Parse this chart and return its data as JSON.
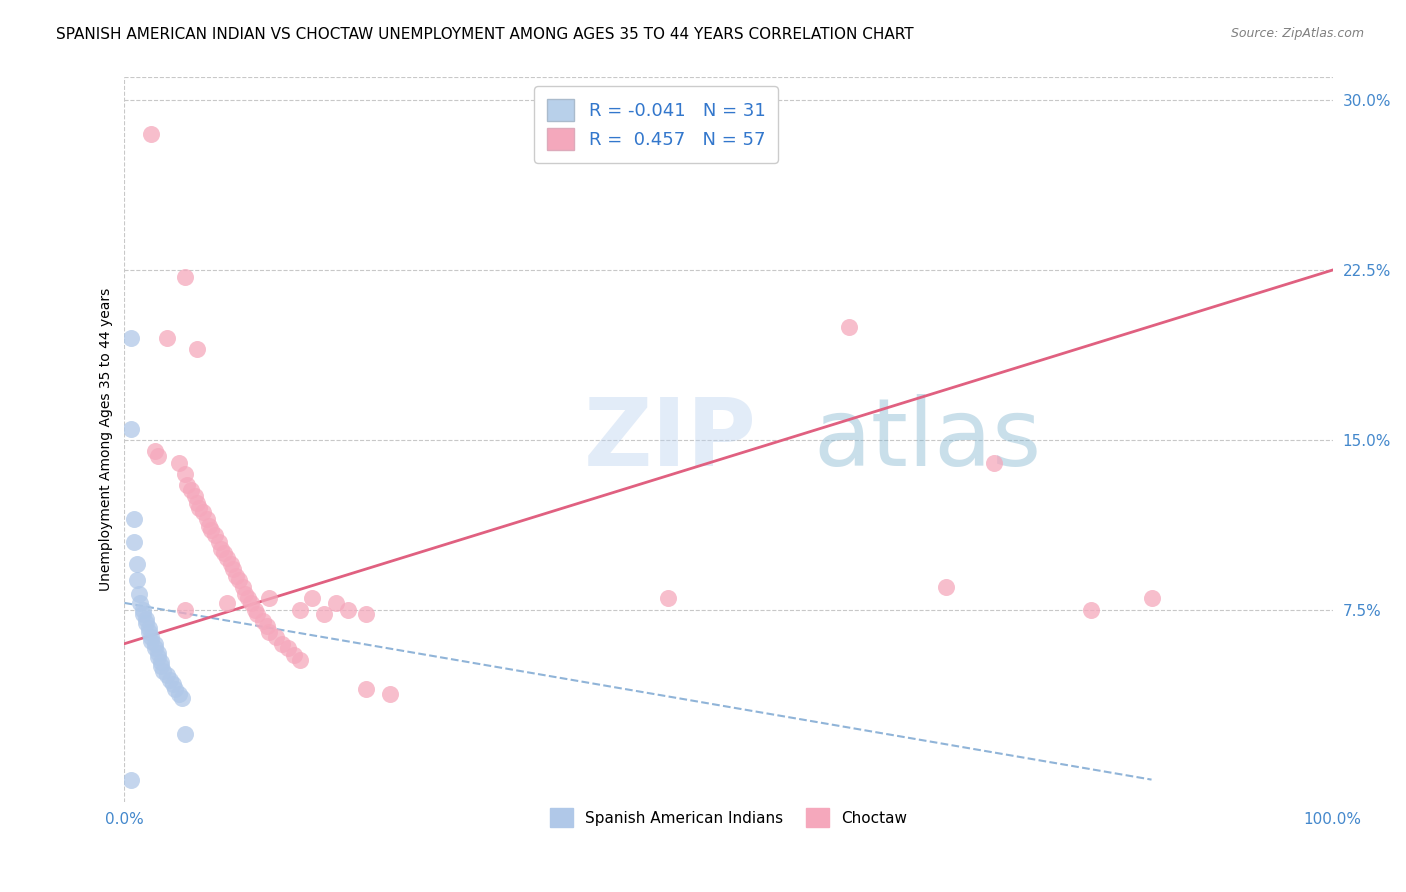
{
  "title": "SPANISH AMERICAN INDIAN VS CHOCTAW UNEMPLOYMENT AMONG AGES 35 TO 44 YEARS CORRELATION CHART",
  "source": "Source: ZipAtlas.com",
  "ylabel": "Unemployment Among Ages 35 to 44 years",
  "xlim": [
    0,
    1.0
  ],
  "ylim": [
    -0.01,
    0.31
  ],
  "xticks": [
    0.0,
    1.0
  ],
  "xticklabels": [
    "0.0%",
    "100.0%"
  ],
  "yticks": [
    0.075,
    0.15,
    0.225,
    0.3
  ],
  "yticklabels": [
    "7.5%",
    "15.0%",
    "22.5%",
    "30.0%"
  ],
  "legend_entries": [
    {
      "label": "R = -0.041   N = 31",
      "color": "#b8d0ea"
    },
    {
      "label": "R =  0.457   N = 57",
      "color": "#f4a8bc"
    }
  ],
  "legend_labels_bottom": [
    "Spanish American Indians",
    "Choctaw"
  ],
  "watermark_text": "ZIP",
  "watermark_text2": "atlas",
  "blue_points": [
    [
      0.005,
      0.195
    ],
    [
      0.005,
      0.155
    ],
    [
      0.008,
      0.115
    ],
    [
      0.008,
      0.105
    ],
    [
      0.01,
      0.095
    ],
    [
      0.01,
      0.088
    ],
    [
      0.012,
      0.082
    ],
    [
      0.013,
      0.078
    ],
    [
      0.015,
      0.075
    ],
    [
      0.015,
      0.073
    ],
    [
      0.018,
      0.071
    ],
    [
      0.018,
      0.069
    ],
    [
      0.02,
      0.067
    ],
    [
      0.02,
      0.065
    ],
    [
      0.022,
      0.063
    ],
    [
      0.022,
      0.061
    ],
    [
      0.025,
      0.06
    ],
    [
      0.025,
      0.058
    ],
    [
      0.028,
      0.056
    ],
    [
      0.028,
      0.054
    ],
    [
      0.03,
      0.052
    ],
    [
      0.03,
      0.05
    ],
    [
      0.032,
      0.048
    ],
    [
      0.035,
      0.046
    ],
    [
      0.038,
      0.044
    ],
    [
      0.04,
      0.042
    ],
    [
      0.042,
      0.04
    ],
    [
      0.045,
      0.038
    ],
    [
      0.048,
      0.036
    ],
    [
      0.05,
      0.02
    ],
    [
      0.005,
      0.0
    ]
  ],
  "pink_points": [
    [
      0.022,
      0.285
    ],
    [
      0.05,
      0.222
    ],
    [
      0.035,
      0.195
    ],
    [
      0.06,
      0.19
    ],
    [
      0.025,
      0.145
    ],
    [
      0.028,
      0.143
    ],
    [
      0.045,
      0.14
    ],
    [
      0.05,
      0.135
    ],
    [
      0.052,
      0.13
    ],
    [
      0.055,
      0.128
    ],
    [
      0.058,
      0.125
    ],
    [
      0.06,
      0.122
    ],
    [
      0.062,
      0.12
    ],
    [
      0.065,
      0.118
    ],
    [
      0.068,
      0.115
    ],
    [
      0.07,
      0.112
    ],
    [
      0.072,
      0.11
    ],
    [
      0.075,
      0.108
    ],
    [
      0.078,
      0.105
    ],
    [
      0.08,
      0.102
    ],
    [
      0.082,
      0.1
    ],
    [
      0.085,
      0.098
    ],
    [
      0.088,
      0.095
    ],
    [
      0.09,
      0.093
    ],
    [
      0.092,
      0.09
    ],
    [
      0.095,
      0.088
    ],
    [
      0.098,
      0.085
    ],
    [
      0.1,
      0.082
    ],
    [
      0.102,
      0.08
    ],
    [
      0.105,
      0.078
    ],
    [
      0.108,
      0.075
    ],
    [
      0.11,
      0.073
    ],
    [
      0.115,
      0.07
    ],
    [
      0.118,
      0.068
    ],
    [
      0.12,
      0.065
    ],
    [
      0.125,
      0.063
    ],
    [
      0.13,
      0.06
    ],
    [
      0.135,
      0.058
    ],
    [
      0.14,
      0.055
    ],
    [
      0.145,
      0.053
    ],
    [
      0.05,
      0.075
    ],
    [
      0.085,
      0.078
    ],
    [
      0.12,
      0.08
    ],
    [
      0.145,
      0.075
    ],
    [
      0.165,
      0.073
    ],
    [
      0.155,
      0.08
    ],
    [
      0.175,
      0.078
    ],
    [
      0.185,
      0.075
    ],
    [
      0.2,
      0.073
    ],
    [
      0.2,
      0.04
    ],
    [
      0.22,
      0.038
    ],
    [
      0.45,
      0.08
    ],
    [
      0.6,
      0.2
    ],
    [
      0.68,
      0.085
    ],
    [
      0.72,
      0.14
    ],
    [
      0.8,
      0.075
    ],
    [
      0.85,
      0.08
    ]
  ],
  "blue_line": {
    "x0": 0.0,
    "y0": 0.078,
    "x1": 0.85,
    "y1": 0.0
  },
  "pink_line": {
    "x0": 0.0,
    "y0": 0.06,
    "x1": 1.0,
    "y1": 0.225
  },
  "blue_color": "#b0c8e8",
  "pink_color": "#f5a8bc",
  "blue_line_color": "#90b4d8",
  "pink_line_color": "#e06080",
  "background_color": "#ffffff",
  "grid_color": "#c8c8c8",
  "title_fontsize": 11,
  "axis_label_fontsize": 10,
  "tick_fontsize": 11,
  "tick_color": "#4488cc"
}
